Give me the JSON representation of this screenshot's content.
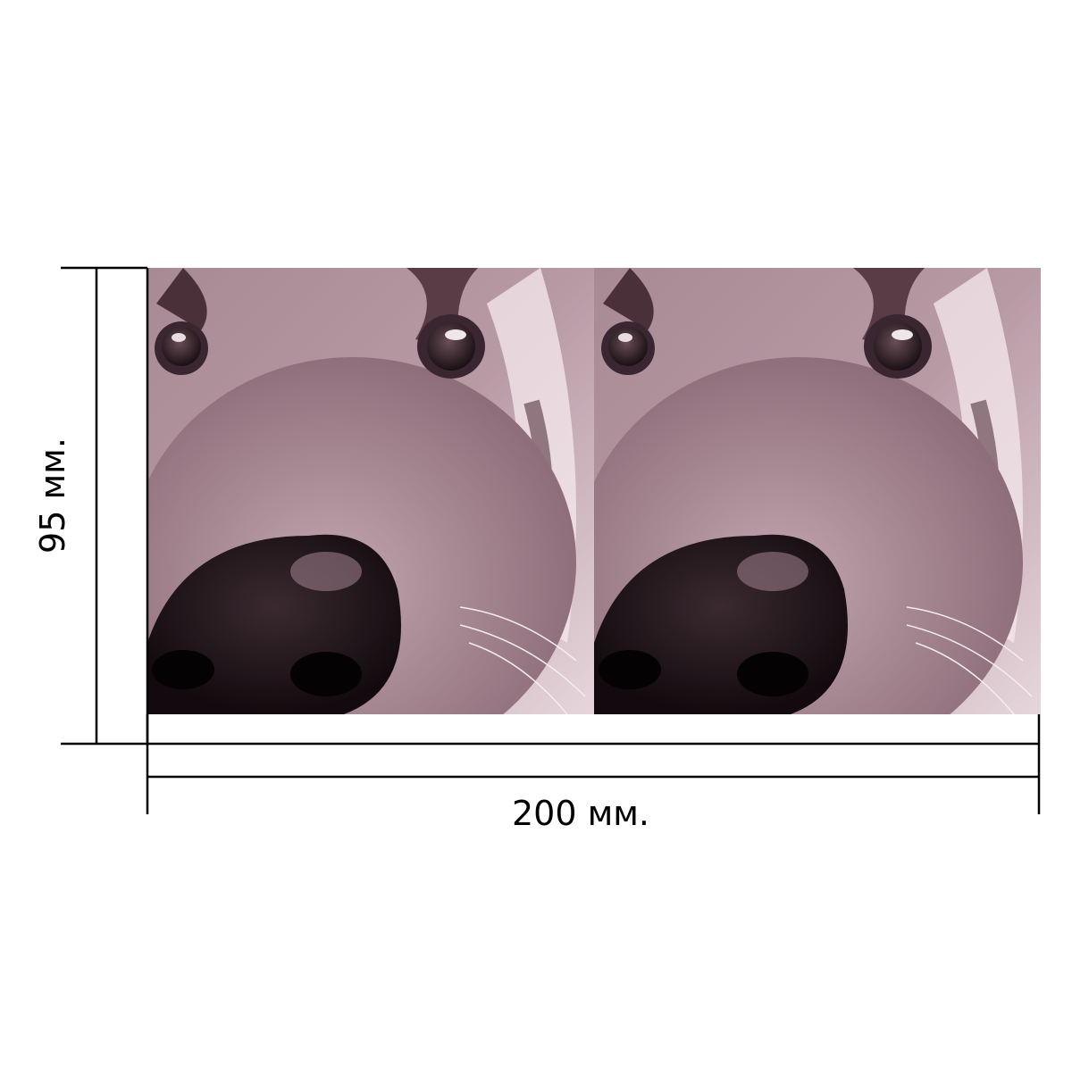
{
  "dimensions": {
    "height": {
      "label": "95 мм."
    },
    "width": {
      "label": "200 мм."
    }
  }
}
